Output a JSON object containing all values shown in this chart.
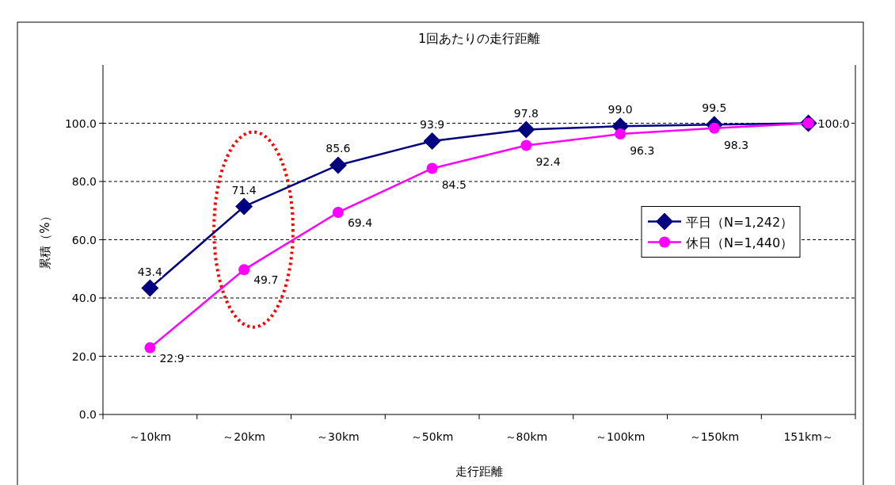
{
  "chart_data": {
    "type": "line",
    "title": "1回あたりの走行距離",
    "xlabel": "走行距離",
    "ylabel": "累積（%）",
    "categories": [
      "～10km",
      "～20km",
      "～30km",
      "～50km",
      "～80km",
      "～100km",
      "～150km",
      "151km～"
    ],
    "series": [
      {
        "name": "平日（N=1,242）",
        "color": "#000080",
        "marker": "diamond",
        "values": [
          43.4,
          71.4,
          85.6,
          93.9,
          97.8,
          99.0,
          99.5,
          100.0
        ],
        "value_labels": [
          "43.4",
          "71.4",
          "85.6",
          "93.9",
          "97.8",
          "99.0",
          "99.5",
          null
        ]
      },
      {
        "name": "休日（N=1,440）",
        "color": "#ff00ff",
        "marker": "circle",
        "values": [
          22.9,
          49.7,
          69.4,
          84.5,
          92.4,
          96.3,
          98.3,
          100.0
        ],
        "value_labels": [
          "22.9",
          "49.7",
          "69.4",
          "84.5",
          "92.4",
          "96.3",
          "98.3",
          "100.0"
        ]
      }
    ],
    "ylim": [
      0,
      120
    ],
    "yticks": [
      {
        "value": 0,
        "label": "0.0"
      },
      {
        "value": 20,
        "label": "20.0"
      },
      {
        "value": 40,
        "label": "40.0"
      },
      {
        "value": 60,
        "label": "60.0"
      },
      {
        "value": 80,
        "label": "80.0"
      },
      {
        "value": 100,
        "label": "100.0"
      }
    ],
    "grid": "y",
    "legend": "right",
    "line_style": "solid"
  }
}
